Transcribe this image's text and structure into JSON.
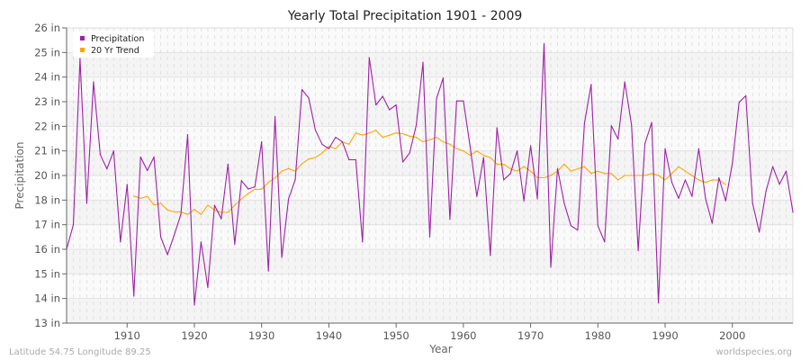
{
  "chart_data": {
    "type": "line",
    "title": "Yearly Total Precipitation 1901 - 2009",
    "xlabel": "Year",
    "ylabel": "Precipitation",
    "xlim": [
      1901,
      2009
    ],
    "x_ticks": [
      1910,
      1920,
      1930,
      1940,
      1950,
      1960,
      1970,
      1980,
      1990,
      2000
    ],
    "y_ticks": [
      {
        "value": 26,
        "label": "26 in"
      },
      {
        "value": 25,
        "label": "25 in"
      },
      {
        "value": 24,
        "label": "24 in"
      },
      {
        "value": 23,
        "label": "23 in"
      },
      {
        "value": 22,
        "label": "22 in"
      },
      {
        "value": 21,
        "label": "21 in"
      },
      {
        "value": 20,
        "label": "20 in"
      },
      {
        "value": 18,
        "label": "18 in"
      },
      {
        "value": 17,
        "label": "17 in"
      },
      {
        "value": 16,
        "label": "16 in"
      },
      {
        "value": 15,
        "label": "15 in"
      },
      {
        "value": 14,
        "label": "14 in"
      },
      {
        "value": 13,
        "label": "13 in"
      }
    ],
    "grid": true,
    "legend_position": "top-left",
    "series": [
      {
        "name": "Precipitation",
        "color": "#a020a8",
        "x_start": 1901,
        "values": [
          16.0,
          17.0,
          24.75,
          17.87,
          23.8,
          20.85,
          20.27,
          21.0,
          16.3,
          19.27,
          14.1,
          20.75,
          20.2,
          20.75,
          16.5,
          15.78,
          16.58,
          17.42,
          21.66,
          13.73,
          16.3,
          14.45,
          17.79,
          17.24,
          20.46,
          16.21,
          19.58,
          18.9,
          19.08,
          21.37,
          15.12,
          22.39,
          15.67,
          18.1,
          19.68,
          23.49,
          23.15,
          21.84,
          21.27,
          21.09,
          21.55,
          21.37,
          20.64,
          20.64,
          16.3,
          24.79,
          22.87,
          23.22,
          22.67,
          22.87,
          20.55,
          20.91,
          22.06,
          24.6,
          16.5,
          23.12,
          23.96,
          17.22,
          23.03,
          23.03,
          21.19,
          18.3,
          20.73,
          15.75,
          21.94,
          19.64,
          20.08,
          21.0,
          17.97,
          21.21,
          18.1,
          25.36,
          15.28,
          20.28,
          17.87,
          16.96,
          16.78,
          22.12,
          23.7,
          16.96,
          16.3,
          22.02,
          21.48,
          23.8,
          22.06,
          15.95,
          21.3,
          22.15,
          13.82,
          21.09,
          19.44,
          18.14,
          19.64,
          18.3,
          21.09,
          18.14,
          17.06,
          19.82,
          17.97,
          20.51,
          22.97,
          23.24,
          17.87,
          16.7,
          18.72,
          20.36,
          19.28,
          20.18,
          17.51
        ]
      },
      {
        "name": "20 Yr Trend",
        "color": "#ffa500",
        "x_start": 1911,
        "values": [
          18.33,
          18.14,
          18.3,
          17.8,
          17.87,
          17.6,
          17.52,
          17.52,
          17.42,
          17.62,
          17.42,
          17.79,
          17.6,
          17.5,
          17.5,
          17.79,
          18.1,
          18.54,
          18.88,
          18.88,
          19.44,
          19.8,
          20.18,
          20.28,
          20.18,
          20.48,
          20.67,
          20.73,
          20.91,
          21.19,
          21.09,
          21.37,
          21.27,
          21.73,
          21.64,
          21.73,
          21.84,
          21.55,
          21.64,
          21.73,
          21.7,
          21.6,
          21.55,
          21.37,
          21.45,
          21.55,
          21.37,
          21.27,
          21.09,
          21.0,
          20.82,
          21.0,
          20.82,
          20.73,
          20.46,
          20.46,
          20.27,
          20.18,
          20.36,
          20.18,
          19.83,
          19.82,
          20.0,
          20.18,
          20.46,
          20.18,
          20.27,
          20.36,
          20.08,
          20.18,
          20.08,
          20.08,
          19.64,
          20.0,
          20.0,
          20.0,
          20.0,
          20.08,
          20.0,
          19.64,
          20.08,
          20.36,
          20.18,
          20.0,
          19.64,
          19.44,
          19.64,
          19.64,
          19.27
        ]
      }
    ]
  },
  "footer": {
    "location": "Latitude 54.75 Longitude 89.25",
    "source": "worldspecies.org"
  }
}
